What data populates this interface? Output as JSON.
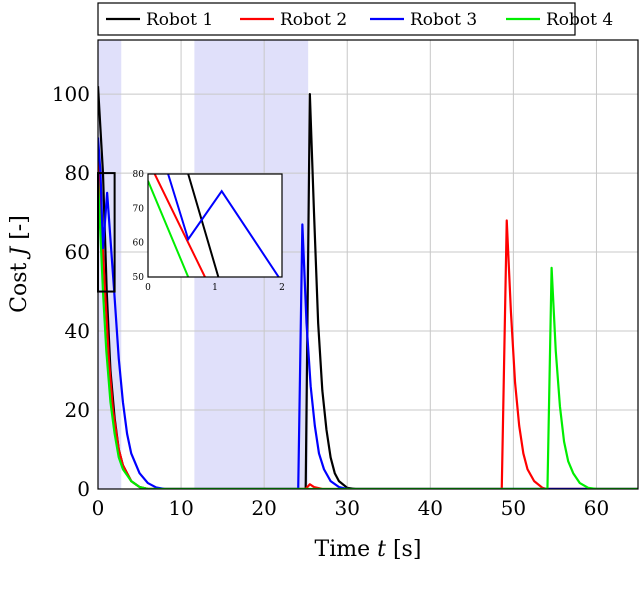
{
  "chart_data": {
    "type": "line",
    "xlabel": "Time t [s]",
    "ylabel": "Cost J [-]",
    "xlabel_parts": [
      "Time ",
      "t",
      " [s]"
    ],
    "ylabel_parts": [
      "Cost ",
      "J",
      " [-]"
    ],
    "xlim": [
      0,
      65
    ],
    "ylim": [
      0,
      113.7
    ],
    "xticks": [
      0,
      10,
      20,
      30,
      40,
      50,
      60
    ],
    "yticks": [
      0,
      20,
      40,
      60,
      80,
      100
    ],
    "grid": true,
    "legend": "top",
    "shaded_intervals": [
      [
        0,
        2.8
      ],
      [
        11.6,
        25.3
      ]
    ],
    "shade_color": "#e0e0fa",
    "series": [
      {
        "name": "Robot 1",
        "color": "#000000",
        "points": [
          [
            0,
            102
          ],
          [
            0.6,
            80
          ],
          [
            1.05,
            50
          ],
          [
            1.5,
            30
          ],
          [
            2,
            18
          ],
          [
            2.5,
            10
          ],
          [
            3,
            6
          ],
          [
            4,
            2
          ],
          [
            5,
            0.5
          ],
          [
            6,
            0
          ],
          [
            25,
            0
          ],
          [
            25.5,
            100
          ],
          [
            26,
            70
          ],
          [
            26.5,
            42
          ],
          [
            27,
            25
          ],
          [
            27.5,
            15
          ],
          [
            28,
            8
          ],
          [
            28.5,
            4
          ],
          [
            29,
            2
          ],
          [
            30,
            0.3
          ],
          [
            31,
            0
          ],
          [
            65,
            0
          ]
        ]
      },
      {
        "name": "Robot 2",
        "color": "#ff0000",
        "points": [
          [
            0,
            83
          ],
          [
            0.1,
            80
          ],
          [
            0.85,
            50
          ],
          [
            1.3,
            33
          ],
          [
            1.8,
            20
          ],
          [
            2.5,
            10
          ],
          [
            3,
            6
          ],
          [
            4,
            2
          ],
          [
            5,
            0.5
          ],
          [
            6,
            0
          ],
          [
            25,
            0
          ],
          [
            25.5,
            1.2
          ],
          [
            26,
            0.5
          ],
          [
            27,
            0
          ],
          [
            48.6,
            0
          ],
          [
            49.2,
            68
          ],
          [
            49.7,
            45
          ],
          [
            50.2,
            27
          ],
          [
            50.7,
            16
          ],
          [
            51.2,
            9
          ],
          [
            51.7,
            5
          ],
          [
            52.5,
            2
          ],
          [
            53.5,
            0.3
          ],
          [
            54,
            0
          ],
          [
            65,
            0
          ]
        ]
      },
      {
        "name": "Robot 3",
        "color": "#0000ff",
        "points": [
          [
            0,
            89
          ],
          [
            0.3,
            80
          ],
          [
            0.6,
            61
          ],
          [
            1.1,
            75
          ],
          [
            1.95,
            50
          ],
          [
            2.5,
            33
          ],
          [
            3,
            22
          ],
          [
            3.5,
            14
          ],
          [
            4,
            9
          ],
          [
            5,
            4
          ],
          [
            6,
            1.5
          ],
          [
            7,
            0.4
          ],
          [
            8,
            0
          ],
          [
            24.1,
            0
          ],
          [
            24.6,
            67
          ],
          [
            25.1,
            42
          ],
          [
            25.6,
            26
          ],
          [
            26.1,
            16
          ],
          [
            26.6,
            9
          ],
          [
            27.2,
            5
          ],
          [
            28,
            2
          ],
          [
            29,
            0.5
          ],
          [
            30,
            0
          ],
          [
            65,
            0
          ]
        ]
      },
      {
        "name": "Robot 4",
        "color": "#00ee00",
        "points": [
          [
            0,
            78
          ],
          [
            0.6,
            50
          ],
          [
            1,
            35
          ],
          [
            1.5,
            22
          ],
          [
            2,
            14
          ],
          [
            2.5,
            8
          ],
          [
            3,
            5
          ],
          [
            4,
            2
          ],
          [
            5,
            0.5
          ],
          [
            6,
            0
          ],
          [
            54.1,
            0
          ],
          [
            54.6,
            56
          ],
          [
            55.1,
            35
          ],
          [
            55.6,
            21
          ],
          [
            56.1,
            12
          ],
          [
            56.6,
            7
          ],
          [
            57.2,
            4
          ],
          [
            58,
            1.5
          ],
          [
            59,
            0.3
          ],
          [
            60,
            0
          ],
          [
            65,
            0
          ]
        ]
      }
    ],
    "inset": {
      "xlim": [
        0,
        2
      ],
      "ylim": [
        50,
        80
      ],
      "xticks": [
        0,
        1,
        2
      ],
      "yticks": [
        50,
        60,
        70,
        80
      ]
    }
  }
}
